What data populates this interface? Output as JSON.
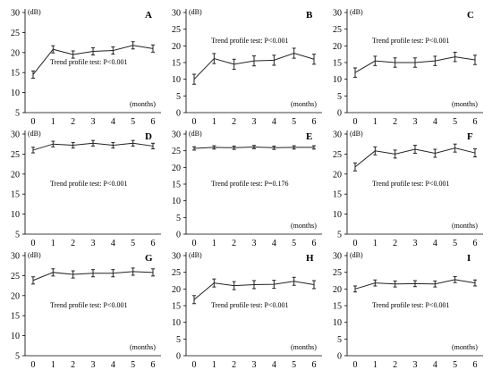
{
  "chart_data": [
    {
      "type": "line",
      "panel": "A",
      "x": [
        0,
        1,
        2,
        3,
        4,
        5,
        6
      ],
      "y": [
        14.5,
        20.8,
        19.5,
        20.3,
        20.5,
        21.8,
        21.0
      ],
      "err": [
        0.9,
        0.9,
        0.9,
        0.9,
        0.9,
        0.9,
        0.9
      ],
      "ylim": [
        5,
        30
      ],
      "yticks": [
        5,
        10,
        15,
        20,
        25,
        30
      ],
      "xticks": [
        0,
        1,
        2,
        3,
        4,
        5,
        6
      ],
      "unit_label": "(dB)",
      "xlabel": "(months)",
      "annotation": "Trend profile test: P<0.001",
      "annotation_pos": "middle"
    },
    {
      "type": "line",
      "panel": "B",
      "x": [
        0,
        1,
        2,
        3,
        4,
        5,
        6
      ],
      "y": [
        10.0,
        16.2,
        14.5,
        15.5,
        15.7,
        17.8,
        16.0
      ],
      "err": [
        1.5,
        1.5,
        1.5,
        1.5,
        1.5,
        1.5,
        1.5
      ],
      "ylim": [
        0,
        30
      ],
      "yticks": [
        0,
        5,
        10,
        15,
        20,
        25,
        30
      ],
      "xticks": [
        0,
        1,
        2,
        3,
        4,
        5,
        6
      ],
      "unit_label": "(dB)",
      "xlabel": "(months)",
      "annotation": "Trend profile test: P<0.001",
      "annotation_pos": "upper"
    },
    {
      "type": "line",
      "panel": "C",
      "x": [
        0,
        1,
        2,
        3,
        4,
        5,
        6
      ],
      "y": [
        12.0,
        15.5,
        15.0,
        15.0,
        15.5,
        16.7,
        15.8
      ],
      "err": [
        1.4,
        1.4,
        1.4,
        1.4,
        1.4,
        1.4,
        1.4
      ],
      "ylim": [
        0,
        30
      ],
      "yticks": [
        0,
        5,
        10,
        15,
        20,
        25,
        30
      ],
      "xticks": [
        0,
        1,
        2,
        3,
        4,
        5,
        6
      ],
      "unit_label": "(dB)",
      "xlabel": "(months)",
      "annotation": "Trend profile test: P<0.001",
      "annotation_pos": "upper"
    },
    {
      "type": "line",
      "panel": "D",
      "x": [
        0,
        1,
        2,
        3,
        4,
        5,
        6
      ],
      "y": [
        26.0,
        27.5,
        27.2,
        27.7,
        27.2,
        27.7,
        27.0
      ],
      "err": [
        0.7,
        0.7,
        0.7,
        0.7,
        0.7,
        0.7,
        0.7
      ],
      "ylim": [
        5,
        30
      ],
      "yticks": [
        5,
        10,
        15,
        20,
        25,
        30
      ],
      "xticks": [
        0,
        1,
        2,
        3,
        4,
        5,
        6
      ],
      "unit_label": "(dB)",
      "xlabel": "",
      "annotation": "Trend profile test: P<0.001",
      "annotation_pos": "middle"
    },
    {
      "type": "line",
      "panel": "E",
      "x": [
        0,
        1,
        2,
        3,
        4,
        5,
        6
      ],
      "y": [
        25.7,
        26.0,
        25.9,
        26.1,
        25.9,
        26.0,
        26.0
      ],
      "err": [
        0.5,
        0.5,
        0.5,
        0.5,
        0.5,
        0.5,
        0.5
      ],
      "ylim": [
        0,
        30
      ],
      "yticks": [
        0,
        5,
        10,
        15,
        20,
        25,
        30
      ],
      "xticks": [
        0,
        1,
        2,
        3,
        4,
        5,
        6
      ],
      "unit_label": "(dB)",
      "xlabel": "(months)",
      "annotation": "Trend profile test: P=0.176",
      "annotation_pos": "middle"
    },
    {
      "type": "line",
      "panel": "F",
      "x": [
        0,
        1,
        2,
        3,
        4,
        5,
        6
      ],
      "y": [
        21.8,
        25.8,
        25.0,
        26.2,
        25.2,
        26.5,
        25.3
      ],
      "err": [
        1.0,
        1.0,
        1.0,
        1.0,
        1.0,
        1.0,
        1.0
      ],
      "ylim": [
        5,
        30
      ],
      "yticks": [
        5,
        10,
        15,
        20,
        25,
        30
      ],
      "xticks": [
        0,
        1,
        2,
        3,
        4,
        5,
        6
      ],
      "unit_label": "(dB)",
      "xlabel": "(months)",
      "annotation": "Trend profile test: P<0.001",
      "annotation_pos": "middle"
    },
    {
      "type": "line",
      "panel": "G",
      "x": [
        0,
        1,
        2,
        3,
        4,
        5,
        6
      ],
      "y": [
        23.8,
        25.8,
        25.3,
        25.6,
        25.6,
        26.0,
        25.8
      ],
      "err": [
        0.9,
        0.9,
        0.9,
        0.9,
        0.9,
        0.9,
        0.9
      ],
      "ylim": [
        5,
        30
      ],
      "yticks": [
        5,
        10,
        15,
        20,
        25,
        30
      ],
      "xticks": [
        0,
        1,
        2,
        3,
        4,
        5,
        6
      ],
      "unit_label": "(dB)",
      "xlabel": "(months)",
      "annotation": "Trend profile test: P<0.001",
      "annotation_pos": "middle"
    },
    {
      "type": "line",
      "panel": "H",
      "x": [
        0,
        1,
        2,
        3,
        4,
        5,
        6
      ],
      "y": [
        16.8,
        21.8,
        21.0,
        21.3,
        21.4,
        22.3,
        21.3
      ],
      "err": [
        1.2,
        1.2,
        1.2,
        1.2,
        1.2,
        1.2,
        1.2
      ],
      "ylim": [
        0,
        30
      ],
      "yticks": [
        0,
        5,
        10,
        15,
        20,
        25,
        30
      ],
      "xticks": [
        0,
        1,
        2,
        3,
        4,
        5,
        6
      ],
      "unit_label": "(dB)",
      "xlabel": "(months)",
      "annotation": "Trend profile test: P<0.001",
      "annotation_pos": "middle"
    },
    {
      "type": "line",
      "panel": "I",
      "x": [
        0,
        1,
        2,
        3,
        4,
        5,
        6
      ],
      "y": [
        20.0,
        21.8,
        21.5,
        21.6,
        21.5,
        22.8,
        21.8
      ],
      "err": [
        0.9,
        0.9,
        0.9,
        0.9,
        0.9,
        0.9,
        0.9
      ],
      "ylim": [
        0,
        30
      ],
      "yticks": [
        0,
        5,
        10,
        15,
        20,
        25,
        30
      ],
      "xticks": [
        0,
        1,
        2,
        3,
        4,
        5,
        6
      ],
      "unit_label": "(dB)",
      "xlabel": "(months)",
      "annotation": "Trend profile test: P<0.001",
      "annotation_pos": "middle"
    }
  ]
}
